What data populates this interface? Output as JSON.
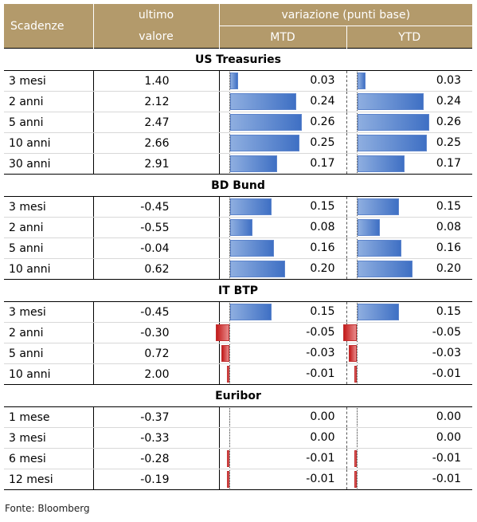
{
  "header": {
    "scadenze": "Scadenze",
    "ultimo_line1": "ultimo",
    "ultimo_line2": "valore",
    "variazione": "variazione (punti base)",
    "mtd": "MTD",
    "ytd": "YTD"
  },
  "colors": {
    "header_bg": "#b39a6b",
    "positive_bar": "#3f70c4",
    "negative_bar": "#c31a1a"
  },
  "bar_scale_max": 0.26,
  "groups": [
    {
      "title": "US Treasuries",
      "rows": [
        {
          "scadenza": "3 mesi",
          "ultimo": "1.40",
          "mtd": "0.03",
          "ytd": "0.03"
        },
        {
          "scadenza": "2 anni",
          "ultimo": "2.12",
          "mtd": "0.24",
          "ytd": "0.24"
        },
        {
          "scadenza": "5 anni",
          "ultimo": "2.47",
          "mtd": "0.26",
          "ytd": "0.26"
        },
        {
          "scadenza": "10 anni",
          "ultimo": "2.66",
          "mtd": "0.25",
          "ytd": "0.25"
        },
        {
          "scadenza": "30 anni",
          "ultimo": "2.91",
          "mtd": "0.17",
          "ytd": "0.17"
        }
      ]
    },
    {
      "title": "BD Bund",
      "rows": [
        {
          "scadenza": "3 mesi",
          "ultimo": "-0.45",
          "mtd": "0.15",
          "ytd": "0.15"
        },
        {
          "scadenza": "2 anni",
          "ultimo": "-0.55",
          "mtd": "0.08",
          "ytd": "0.08"
        },
        {
          "scadenza": "5 anni",
          "ultimo": "-0.04",
          "mtd": "0.16",
          "ytd": "0.16"
        },
        {
          "scadenza": "10 anni",
          "ultimo": "0.62",
          "mtd": "0.20",
          "ytd": "0.20"
        }
      ]
    },
    {
      "title": "IT BTP",
      "rows": [
        {
          "scadenza": "3 mesi",
          "ultimo": "-0.45",
          "mtd": "0.15",
          "ytd": "0.15"
        },
        {
          "scadenza": "2 anni",
          "ultimo": "-0.30",
          "mtd": "-0.05",
          "ytd": "-0.05"
        },
        {
          "scadenza": "5 anni",
          "ultimo": "0.72",
          "mtd": "-0.03",
          "ytd": "-0.03"
        },
        {
          "scadenza": "10 anni",
          "ultimo": "2.00",
          "mtd": "-0.01",
          "ytd": "-0.01"
        }
      ]
    },
    {
      "title": "Euribor",
      "rows": [
        {
          "scadenza": "1 mese",
          "ultimo": "-0.37",
          "mtd": "0.00",
          "ytd": "0.00"
        },
        {
          "scadenza": "3 mesi",
          "ultimo": "-0.33",
          "mtd": "0.00",
          "ytd": "0.00"
        },
        {
          "scadenza": "6 mesi",
          "ultimo": "-0.28",
          "mtd": "-0.01",
          "ytd": "-0.01"
        },
        {
          "scadenza": "12 mesi",
          "ultimo": "-0.19",
          "mtd": "-0.01",
          "ytd": "-0.01"
        }
      ]
    }
  ],
  "source": "Fonte: Bloomberg"
}
